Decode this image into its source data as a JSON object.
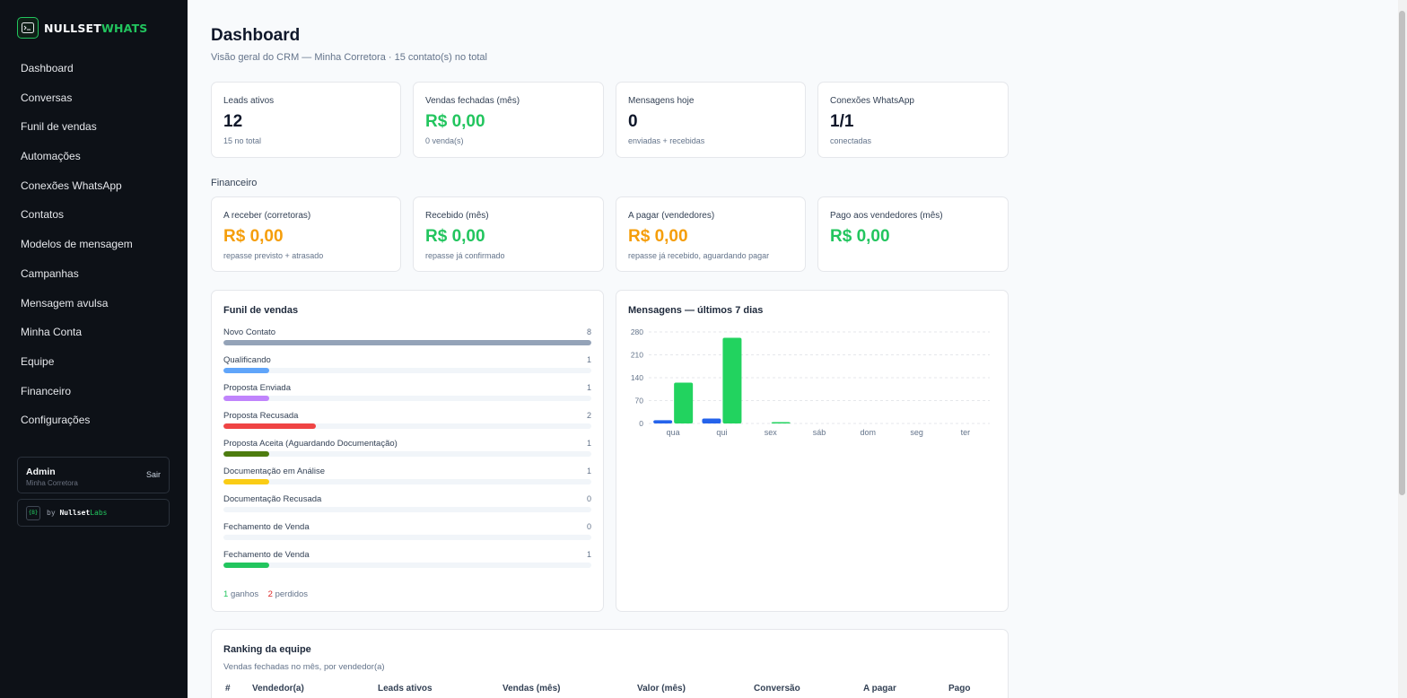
{
  "brand": {
    "word1": "NULLSET",
    "word2": "WHATS"
  },
  "nav": [
    "Dashboard",
    "Conversas",
    "Funil de vendas",
    "Automações",
    "Conexões WhatsApp",
    "Contatos",
    "Modelos de mensagem",
    "Campanhas",
    "Mensagem avulsa",
    "Minha Conta",
    "Equipe",
    "Financeiro",
    "Configurações"
  ],
  "user": {
    "name": "Admin",
    "org": "Minha Corretora",
    "logout": "Sair"
  },
  "credit": {
    "by": "by",
    "name": "Nullset",
    "labs": "Labs",
    "logo": "{B}"
  },
  "page": {
    "title": "Dashboard",
    "subtitle": "Visão geral do CRM — Minha Corretora · 15 contato(s) no total"
  },
  "stats": [
    {
      "label": "Leads ativos",
      "value": "12",
      "hint": "15 no total"
    },
    {
      "label": "Vendas fechadas (mês)",
      "value": "R$ 0,00",
      "hint": "0 venda(s)",
      "color": "#22c55e"
    },
    {
      "label": "Mensagens hoje",
      "value": "0",
      "hint": "enviadas + recebidas"
    },
    {
      "label": "Conexões WhatsApp",
      "value": "1/1",
      "hint": "conectadas"
    }
  ],
  "finance": {
    "title": "Financeiro",
    "cards": [
      {
        "label": "A receber (corretoras)",
        "value": "R$ 0,00",
        "hint": "repasse previsto + atrasado",
        "color": "#f59e0b"
      },
      {
        "label": "Recebido (mês)",
        "value": "R$ 0,00",
        "hint": "repasse já confirmado",
        "color": "#22c55e"
      },
      {
        "label": "A pagar (vendedores)",
        "value": "R$ 0,00",
        "hint": "repasse já recebido, aguardando pagar",
        "color": "#f59e0b"
      },
      {
        "label": "Pago aos vendedores (mês)",
        "value": "R$ 0,00",
        "hint": "",
        "color": "#22c55e"
      }
    ]
  },
  "funnel": {
    "title": "Funil de vendas",
    "stages": [
      {
        "name": "Novo Contato",
        "count": 8,
        "color": "#94a3b8"
      },
      {
        "name": "Qualificando",
        "count": 1,
        "color": "#60a5fa"
      },
      {
        "name": "Proposta Enviada",
        "count": 1,
        "color": "#c084fc"
      },
      {
        "name": "Proposta Recusada",
        "count": 2,
        "color": "#ef4444"
      },
      {
        "name": "Proposta Aceita (Aguardando Documentação)",
        "count": 1,
        "color": "#4d7c0f"
      },
      {
        "name": "Documentação em Análise",
        "count": 1,
        "color": "#facc15"
      },
      {
        "name": "Documentação Recusada",
        "count": 0,
        "color": "#94a3b8"
      },
      {
        "name": "Fechamento de Venda",
        "count": 0,
        "color": "#94a3b8"
      },
      {
        "name": "Fechamento de Venda",
        "count": 1,
        "color": "#22c55e"
      }
    ],
    "won_count": "1",
    "won_label": "ganhos",
    "lost_count": "2",
    "lost_label": "perdidos"
  },
  "messages_chart": {
    "title": "Mensagens — últimos 7 dias"
  },
  "chart_data": {
    "type": "bar",
    "title": "Mensagens — últimos 7 dias",
    "categories": [
      "qua",
      "qui",
      "sex",
      "sáb",
      "dom",
      "seg",
      "ter"
    ],
    "series": [
      {
        "values": [
          10,
          15,
          0,
          0,
          0,
          0,
          0
        ],
        "color": "#2563eb"
      },
      {
        "values": [
          125,
          262,
          3,
          0,
          0,
          0,
          0
        ],
        "color": "#22d35f"
      }
    ],
    "yticks": [
      0,
      70,
      140,
      210,
      280
    ],
    "ylim": [
      0,
      280
    ],
    "grid": true
  },
  "ranking": {
    "title": "Ranking da equipe",
    "subtitle": "Vendas fechadas no mês, por vendedor(a)",
    "columns": [
      "#",
      "Vendedor(a)",
      "Leads ativos",
      "Vendas (mês)",
      "Valor (mês)",
      "Conversão",
      "A pagar",
      "Pago"
    ]
  }
}
